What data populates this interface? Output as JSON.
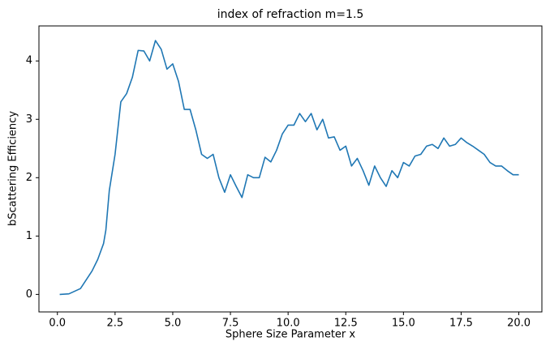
{
  "chart_data": {
    "type": "line",
    "title": "index of refraction m=1.5",
    "x_label": "Sphere Size Parameter x",
    "y_label": "bScattering Efficiency",
    "color": "#1f77b4",
    "x": [
      0.1,
      0.5,
      1.0,
      1.5,
      1.75,
      2.0,
      2.1,
      2.25,
      2.5,
      2.75,
      3.0,
      3.25,
      3.5,
      3.75,
      4.0,
      4.25,
      4.5,
      4.75,
      5.0,
      5.25,
      5.5,
      5.75,
      6.0,
      6.25,
      6.5,
      6.75,
      7.0,
      7.25,
      7.5,
      7.75,
      8.0,
      8.25,
      8.5,
      8.75,
      9.0,
      9.25,
      9.5,
      9.75,
      10.0,
      10.25,
      10.5,
      10.75,
      11.0,
      11.25,
      11.5,
      11.75,
      12.0,
      12.25,
      12.5,
      12.75,
      13.0,
      13.25,
      13.5,
      13.75,
      14.0,
      14.25,
      14.5,
      14.75,
      15.0,
      15.25,
      15.5,
      15.75,
      16.0,
      16.25,
      16.5,
      16.75,
      17.0,
      17.25,
      17.5,
      17.75,
      18.0,
      18.25,
      18.5,
      18.75,
      19.0,
      19.25,
      19.5,
      19.75,
      20.0
    ],
    "values": [
      0.0,
      0.01,
      0.1,
      0.4,
      0.6,
      0.87,
      1.1,
      1.78,
      2.4,
      3.3,
      3.44,
      3.72,
      4.18,
      4.17,
      4.0,
      4.35,
      4.2,
      3.86,
      3.95,
      3.65,
      3.17,
      3.17,
      2.82,
      2.4,
      2.33,
      2.4,
      2.0,
      1.75,
      2.05,
      1.85,
      1.66,
      2.05,
      2.0,
      2.0,
      2.35,
      2.27,
      2.47,
      2.75,
      2.9,
      2.9,
      3.1,
      2.96,
      3.1,
      2.82,
      3.0,
      2.68,
      2.7,
      2.47,
      2.54,
      2.2,
      2.33,
      2.12,
      1.87,
      2.2,
      2.0,
      1.85,
      2.12,
      2.0,
      2.26,
      2.2,
      2.37,
      2.4,
      2.54,
      2.57,
      2.5,
      2.68,
      2.54,
      2.57,
      2.68,
      2.6,
      2.54,
      2.47,
      2.4,
      2.26,
      2.2,
      2.2,
      2.12,
      2.05,
      2.05
    ],
    "xlim": [
      -0.8,
      21.0
    ],
    "ylim": [
      -0.3,
      4.6
    ],
    "xticks": [
      {
        "value": 0,
        "label": "0.0"
      },
      2.5,
      {
        "value": 5,
        "label": "5.0"
      },
      7.5,
      {
        "value": 10,
        "label": "10.0"
      },
      12.5,
      {
        "value": 15,
        "label": "15.0"
      },
      17.5,
      {
        "value": 20,
        "label": "20.0"
      }
    ],
    "yticks": [
      0,
      1,
      2,
      3,
      4
    ]
  }
}
